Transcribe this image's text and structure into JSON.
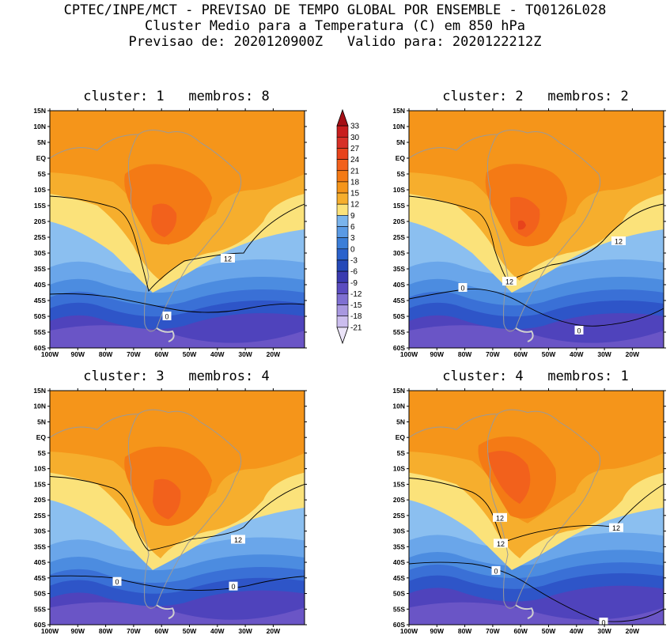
{
  "header": {
    "line1": "CPTEC/INPE/MCT - PREVISAO DE TEMPO GLOBAL POR ENSEMBLE - TQ0126L028",
    "line2": "Cluster Medio para a Temperatura (C) em 850 hPa",
    "line3": "Previsao de: 2020120900Z   Valido para: 2020122212Z"
  },
  "lat_labels": [
    "15N",
    "10N",
    "5N",
    "EQ",
    "5S",
    "10S",
    "15S",
    "20S",
    "25S",
    "30S",
    "35S",
    "40S",
    "45S",
    "50S",
    "55S",
    "60S"
  ],
  "lon_labels": [
    "100W",
    "90W",
    "80W",
    "70W",
    "60W",
    "50W",
    "40W",
    "30W",
    "20W"
  ],
  "panels": [
    {
      "title": "cluster: 1   membros: 8",
      "labels": [
        "12",
        "0"
      ]
    },
    {
      "title": "cluster: 2   membros: 2",
      "labels": [
        "12",
        "12",
        "0",
        "0"
      ]
    },
    {
      "title": "cluster: 3   membros: 4",
      "labels": [
        "12",
        "0",
        "0"
      ]
    },
    {
      "title": "cluster: 4   membros: 1",
      "labels": [
        "12",
        "12",
        "12",
        "0",
        "0"
      ]
    }
  ],
  "colorbar": {
    "levels": [
      "33",
      "30",
      "27",
      "24",
      "21",
      "18",
      "15",
      "12",
      "9",
      "6",
      "3",
      "0",
      "-3",
      "-6",
      "-9",
      "-12",
      "-15",
      "-18",
      "-21"
    ],
    "colors": [
      "#a50f15",
      "#c81e1e",
      "#d73027",
      "#e8431b",
      "#f2611c",
      "#f47a15",
      "#f5951a",
      "#f6ae2d",
      "#fbe27a",
      "#7ab4ec",
      "#5a9ae4",
      "#3b7ed8",
      "#2a62cc",
      "#2549b8",
      "#3a3bb0",
      "#5a4cc0",
      "#7f70d2",
      "#a898e0",
      "#cbbdee",
      "#ebe4f8"
    ]
  }
}
